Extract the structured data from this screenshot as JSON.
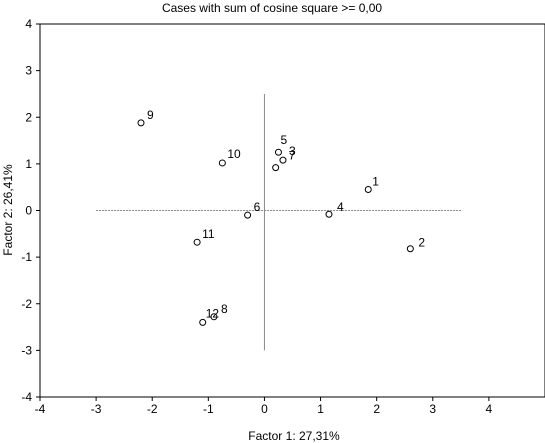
{
  "chart_data": {
    "type": "scatter",
    "title": "Cases with sum of cosine square >=  0,00",
    "xlabel": "Factor 1: 27,31%",
    "ylabel": "Factor 2: 26,41%",
    "xlim": [
      -4,
      5
    ],
    "ylim": [
      -4,
      4
    ],
    "xticks": [
      "-4",
      "-3",
      "-2",
      "-1",
      "0",
      "1",
      "2",
      "3",
      "4"
    ],
    "yticks": [
      "-4",
      "-3",
      "-2",
      "-1",
      "0",
      "1",
      "2",
      "3",
      "4"
    ],
    "grid": false,
    "points": [
      {
        "label": "1",
        "x": 1.85,
        "y": 0.45
      },
      {
        "label": "2",
        "x": 2.6,
        "y": -0.82
      },
      {
        "label": "3",
        "x": 0.33,
        "y": 1.08
      },
      {
        "label": "4",
        "x": 1.15,
        "y": -0.08
      },
      {
        "label": "5",
        "x": 0.25,
        "y": 1.25
      },
      {
        "label": "6",
        "x": -0.3,
        "y": -0.1
      },
      {
        "label": "7",
        "x": 0.2,
        "y": 0.92
      },
      {
        "label": "8",
        "x": -0.9,
        "y": -2.28
      },
      {
        "label": "9",
        "x": -2.2,
        "y": 1.88
      },
      {
        "label": "10",
        "x": -0.75,
        "y": 1.02
      },
      {
        "label": "11",
        "x": -1.2,
        "y": -0.68
      },
      {
        "label": "12",
        "x": -1.1,
        "y": -2.4
      }
    ]
  }
}
